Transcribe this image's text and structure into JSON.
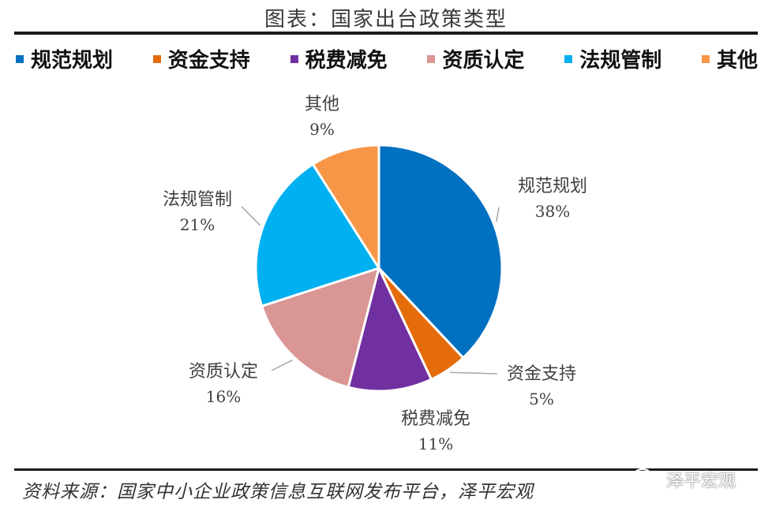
{
  "title": "图表：国家出台政策类型",
  "source": "资料来源：国家中小企业政策信息互联网发布平台，泽平宏观",
  "watermark": {
    "icon": "wechat-icon",
    "text": "泽平宏观"
  },
  "chart_data": {
    "type": "pie",
    "legend_position": "top",
    "start": "12 o'clock, clockwise",
    "slices": [
      {
        "label": "规范规划",
        "value": 38,
        "display": "38%",
        "color": "#0070C0"
      },
      {
        "label": "资金支持",
        "value": 5,
        "display": "5%",
        "color": "#E46C0A"
      },
      {
        "label": "税费减免",
        "value": 11,
        "display": "11%",
        "color": "#7030A0"
      },
      {
        "label": "资质认定",
        "value": 16,
        "display": "16%",
        "color": "#D99694"
      },
      {
        "label": "法规管制",
        "value": 21,
        "display": "21%",
        "color": "#00B0F0"
      },
      {
        "label": "其他",
        "value": 9,
        "display": "9%",
        "color": "#F79646"
      }
    ]
  }
}
